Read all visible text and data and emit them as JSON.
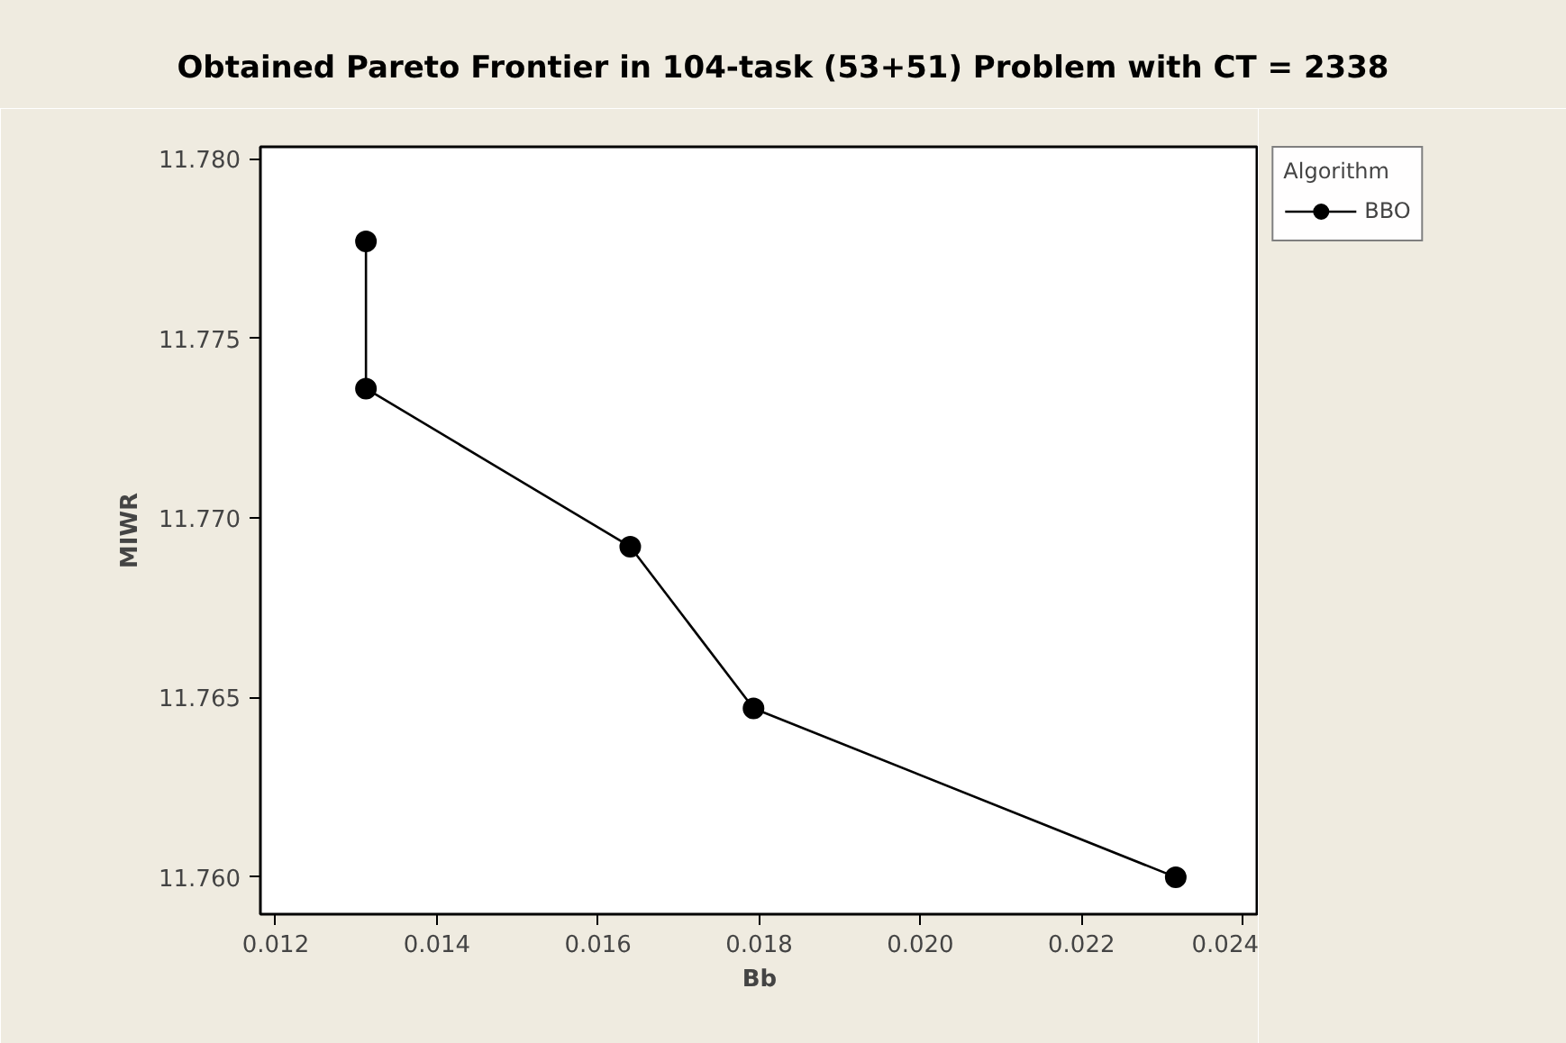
{
  "chart_data": {
    "type": "line",
    "title": "Obtained Pareto Frontier in 104-task (53+51) Problem with CT = 2338",
    "xlabel": "Bb",
    "ylabel": "MIWR",
    "legend_title": "Algorithm",
    "series": [
      {
        "name": "BBO",
        "color": "#000000",
        "x": [
          0.01312,
          0.01312,
          0.0164,
          0.01793,
          0.02317
        ],
        "values": [
          11.7777,
          11.7736,
          11.7692,
          11.7647,
          11.76
        ]
      }
    ],
    "xlim": [
      0.01181,
      0.0242
    ],
    "ylim": [
      11.75897,
      11.78033
    ],
    "xticks": [
      0.012,
      0.014,
      0.016,
      0.018,
      {
        "value": 0.02,
        "label": "0.020"
      },
      0.022,
      0.024
    ],
    "yticks": [
      {
        "value": 11.76,
        "label": "11.760"
      },
      {
        "value": 11.765,
        "label": "11.765"
      },
      {
        "value": 11.77,
        "label": "11.770"
      },
      {
        "value": 11.775,
        "label": "11.775"
      },
      {
        "value": 11.78,
        "label": "11.780"
      }
    ],
    "grid": false,
    "legend": "top right",
    "marker": "circle",
    "line_style": "solid"
  }
}
